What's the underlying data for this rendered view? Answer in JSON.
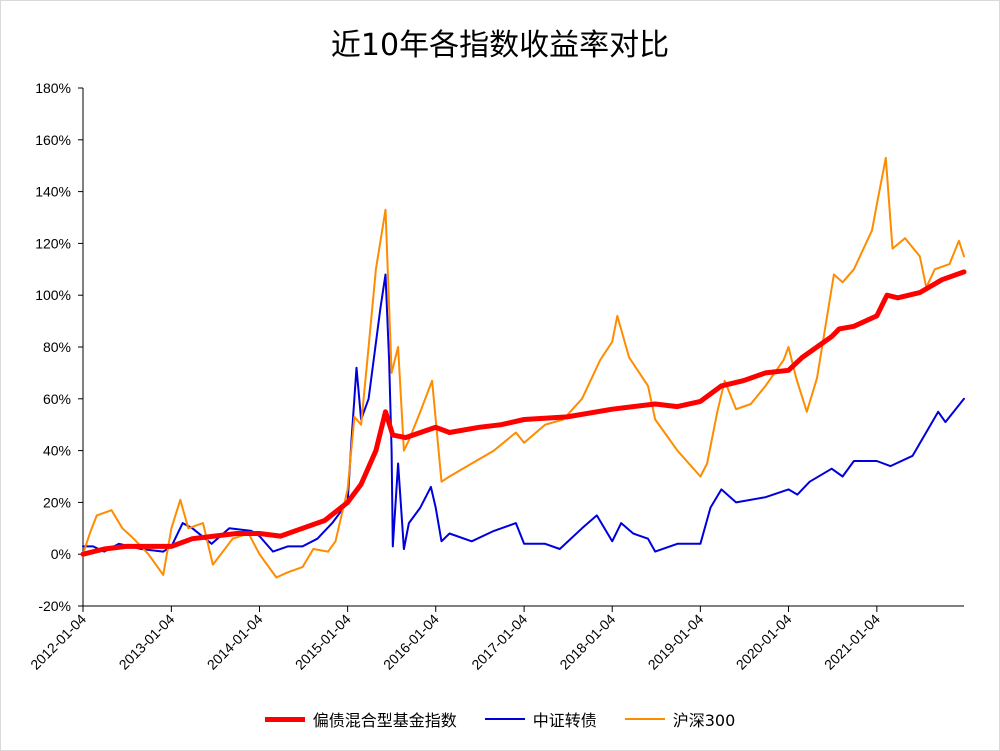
{
  "chart_data": {
    "type": "line",
    "title": "近10年各指数收益率对比",
    "ylim": [
      -20,
      180
    ],
    "y_ticks": [
      "-20%",
      "0%",
      "20%",
      "40%",
      "60%",
      "80%",
      "100%",
      "120%",
      "140%",
      "160%",
      "180%"
    ],
    "y_tick_values": [
      -20,
      0,
      20,
      40,
      60,
      80,
      100,
      120,
      140,
      160,
      180
    ],
    "x_range": [
      "2012-01-04",
      "2021-12-31"
    ],
    "x_ticks": [
      "2012-01-04",
      "2013-01-04",
      "2014-01-04",
      "2015-01-04",
      "2016-01-04",
      "2017-01-04",
      "2018-01-04",
      "2019-01-04",
      "2020-01-04",
      "2021-01-04"
    ],
    "legend_position": "bottom",
    "grid": false,
    "series": [
      {
        "name": "偏债混合型基金指数",
        "color": "#ff0000",
        "points": [
          [
            "2012-01-04",
            0
          ],
          [
            "2012-04-01",
            2
          ],
          [
            "2012-07-01",
            3
          ],
          [
            "2012-10-01",
            3
          ],
          [
            "2013-01-04",
            3
          ],
          [
            "2013-04-01",
            6
          ],
          [
            "2013-07-01",
            7
          ],
          [
            "2013-10-01",
            8
          ],
          [
            "2014-01-04",
            8
          ],
          [
            "2014-04-01",
            7
          ],
          [
            "2014-07-01",
            10
          ],
          [
            "2014-10-01",
            13
          ],
          [
            "2015-01-04",
            20
          ],
          [
            "2015-03-01",
            27
          ],
          [
            "2015-05-01",
            40
          ],
          [
            "2015-06-10",
            55
          ],
          [
            "2015-07-10",
            46
          ],
          [
            "2015-09-01",
            45
          ],
          [
            "2016-01-04",
            49
          ],
          [
            "2016-03-01",
            47
          ],
          [
            "2016-07-01",
            49
          ],
          [
            "2016-10-01",
            50
          ],
          [
            "2017-01-04",
            52
          ],
          [
            "2017-07-01",
            53
          ],
          [
            "2018-01-04",
            56
          ],
          [
            "2018-04-01",
            57
          ],
          [
            "2018-07-01",
            58
          ],
          [
            "2018-10-01",
            57
          ],
          [
            "2019-01-04",
            59
          ],
          [
            "2019-04-01",
            65
          ],
          [
            "2019-07-01",
            67
          ],
          [
            "2019-10-01",
            70
          ],
          [
            "2020-01-04",
            71
          ],
          [
            "2020-03-01",
            76
          ],
          [
            "2020-07-01",
            84
          ],
          [
            "2020-08-01",
            87
          ],
          [
            "2020-10-01",
            88
          ],
          [
            "2021-01-04",
            92
          ],
          [
            "2021-02-15",
            100
          ],
          [
            "2021-04-01",
            99
          ],
          [
            "2021-07-01",
            101
          ],
          [
            "2021-10-01",
            106
          ],
          [
            "2021-12-31",
            109
          ]
        ]
      },
      {
        "name": "中证转债",
        "color": "#0000dd",
        "points": [
          [
            "2012-01-04",
            3
          ],
          [
            "2012-02-15",
            3
          ],
          [
            "2012-04-01",
            1
          ],
          [
            "2012-06-01",
            4
          ],
          [
            "2012-09-01",
            2
          ],
          [
            "2012-12-01",
            1
          ],
          [
            "2013-01-04",
            3
          ],
          [
            "2013-02-20",
            12
          ],
          [
            "2013-04-01",
            10
          ],
          [
            "2013-06-20",
            4
          ],
          [
            "2013-09-01",
            10
          ],
          [
            "2013-12-01",
            9
          ],
          [
            "2014-01-04",
            7
          ],
          [
            "2014-03-01",
            1
          ],
          [
            "2014-05-01",
            3
          ],
          [
            "2014-07-01",
            3
          ],
          [
            "2014-09-01",
            6
          ],
          [
            "2014-11-01",
            12
          ],
          [
            "2015-01-04",
            20
          ],
          [
            "2015-01-20",
            44
          ],
          [
            "2015-02-10",
            72
          ],
          [
            "2015-03-01",
            52
          ],
          [
            "2015-04-01",
            60
          ],
          [
            "2015-05-20",
            95
          ],
          [
            "2015-06-10",
            108
          ],
          [
            "2015-06-25",
            75
          ],
          [
            "2015-07-05",
            40
          ],
          [
            "2015-07-10",
            3
          ],
          [
            "2015-08-01",
            35
          ],
          [
            "2015-08-25",
            2
          ],
          [
            "2015-09-15",
            12
          ],
          [
            "2015-11-01",
            18
          ],
          [
            "2015-12-15",
            26
          ],
          [
            "2016-01-04",
            18
          ],
          [
            "2016-01-28",
            5
          ],
          [
            "2016-03-01",
            8
          ],
          [
            "2016-06-01",
            5
          ],
          [
            "2016-09-01",
            9
          ],
          [
            "2016-12-01",
            12
          ],
          [
            "2017-01-04",
            4
          ],
          [
            "2017-04-01",
            4
          ],
          [
            "2017-06-01",
            2
          ],
          [
            "2017-09-01",
            10
          ],
          [
            "2017-11-01",
            15
          ],
          [
            "2018-01-04",
            5
          ],
          [
            "2018-02-10",
            12
          ],
          [
            "2018-04-01",
            8
          ],
          [
            "2018-06-01",
            6
          ],
          [
            "2018-07-01",
            1
          ],
          [
            "2018-10-01",
            4
          ],
          [
            "2019-01-04",
            4
          ],
          [
            "2019-02-15",
            18
          ],
          [
            "2019-04-01",
            25
          ],
          [
            "2019-06-01",
            20
          ],
          [
            "2019-10-01",
            22
          ],
          [
            "2020-01-04",
            25
          ],
          [
            "2020-02-10",
            23
          ],
          [
            "2020-04-01",
            28
          ],
          [
            "2020-07-01",
            33
          ],
          [
            "2020-08-15",
            30
          ],
          [
            "2020-10-01",
            36
          ],
          [
            "2021-01-04",
            36
          ],
          [
            "2021-03-01",
            34
          ],
          [
            "2021-06-01",
            38
          ],
          [
            "2021-09-15",
            55
          ],
          [
            "2021-10-15",
            51
          ],
          [
            "2021-12-31",
            60
          ]
        ]
      },
      {
        "name": "沪深300",
        "color": "#ff8c00",
        "points": [
          [
            "2012-01-04",
            0
          ],
          [
            "2012-02-01",
            8
          ],
          [
            "2012-03-01",
            15
          ],
          [
            "2012-05-01",
            17
          ],
          [
            "2012-06-15",
            10
          ],
          [
            "2012-08-01",
            6
          ],
          [
            "2012-10-01",
            0
          ],
          [
            "2012-12-01",
            -8
          ],
          [
            "2013-01-04",
            10
          ],
          [
            "2013-02-10",
            21
          ],
          [
            "2013-03-15",
            10
          ],
          [
            "2013-05-15",
            12
          ],
          [
            "2013-06-25",
            -4
          ],
          [
            "2013-09-15",
            6
          ],
          [
            "2013-11-20",
            8
          ],
          [
            "2014-01-04",
            0
          ],
          [
            "2014-03-15",
            -9
          ],
          [
            "2014-05-01",
            -7
          ],
          [
            "2014-07-01",
            -5
          ],
          [
            "2014-08-15",
            2
          ],
          [
            "2014-10-15",
            1
          ],
          [
            "2014-11-15",
            5
          ],
          [
            "2015-01-04",
            25
          ],
          [
            "2015-02-01",
            53
          ],
          [
            "2015-03-01",
            50
          ],
          [
            "2015-04-01",
            80
          ],
          [
            "2015-05-01",
            110
          ],
          [
            "2015-06-10",
            133
          ],
          [
            "2015-07-05",
            70
          ],
          [
            "2015-08-01",
            80
          ],
          [
            "2015-08-25",
            40
          ],
          [
            "2015-09-15",
            44
          ],
          [
            "2015-11-01",
            55
          ],
          [
            "2015-12-20",
            67
          ],
          [
            "2016-01-28",
            28
          ],
          [
            "2016-03-01",
            30
          ],
          [
            "2016-06-01",
            35
          ],
          [
            "2016-09-01",
            40
          ],
          [
            "2016-12-01",
            47
          ],
          [
            "2017-01-04",
            43
          ],
          [
            "2017-04-01",
            50
          ],
          [
            "2017-06-15",
            52
          ],
          [
            "2017-09-01",
            60
          ],
          [
            "2017-11-15",
            75
          ],
          [
            "2018-01-04",
            82
          ],
          [
            "2018-01-25",
            92
          ],
          [
            "2018-03-15",
            76
          ],
          [
            "2018-06-01",
            65
          ],
          [
            "2018-07-01",
            52
          ],
          [
            "2018-10-01",
            40
          ],
          [
            "2019-01-04",
            30
          ],
          [
            "2019-02-01",
            35
          ],
          [
            "2019-03-15",
            55
          ],
          [
            "2019-04-15",
            67
          ],
          [
            "2019-06-01",
            56
          ],
          [
            "2019-08-01",
            58
          ],
          [
            "2019-10-01",
            65
          ],
          [
            "2019-12-15",
            75
          ],
          [
            "2020-01-04",
            80
          ],
          [
            "2020-02-05",
            68
          ],
          [
            "2020-03-20",
            55
          ],
          [
            "2020-05-01",
            68
          ],
          [
            "2020-07-10",
            108
          ],
          [
            "2020-08-15",
            105
          ],
          [
            "2020-10-01",
            110
          ],
          [
            "2020-12-15",
            125
          ],
          [
            "2021-01-04",
            135
          ],
          [
            "2021-02-10",
            153
          ],
          [
            "2021-03-10",
            118
          ],
          [
            "2021-05-01",
            122
          ],
          [
            "2021-07-01",
            115
          ],
          [
            "2021-07-28",
            103
          ],
          [
            "2021-09-01",
            110
          ],
          [
            "2021-11-01",
            112
          ],
          [
            "2021-12-10",
            121
          ],
          [
            "2021-12-31",
            115
          ]
        ]
      }
    ]
  }
}
